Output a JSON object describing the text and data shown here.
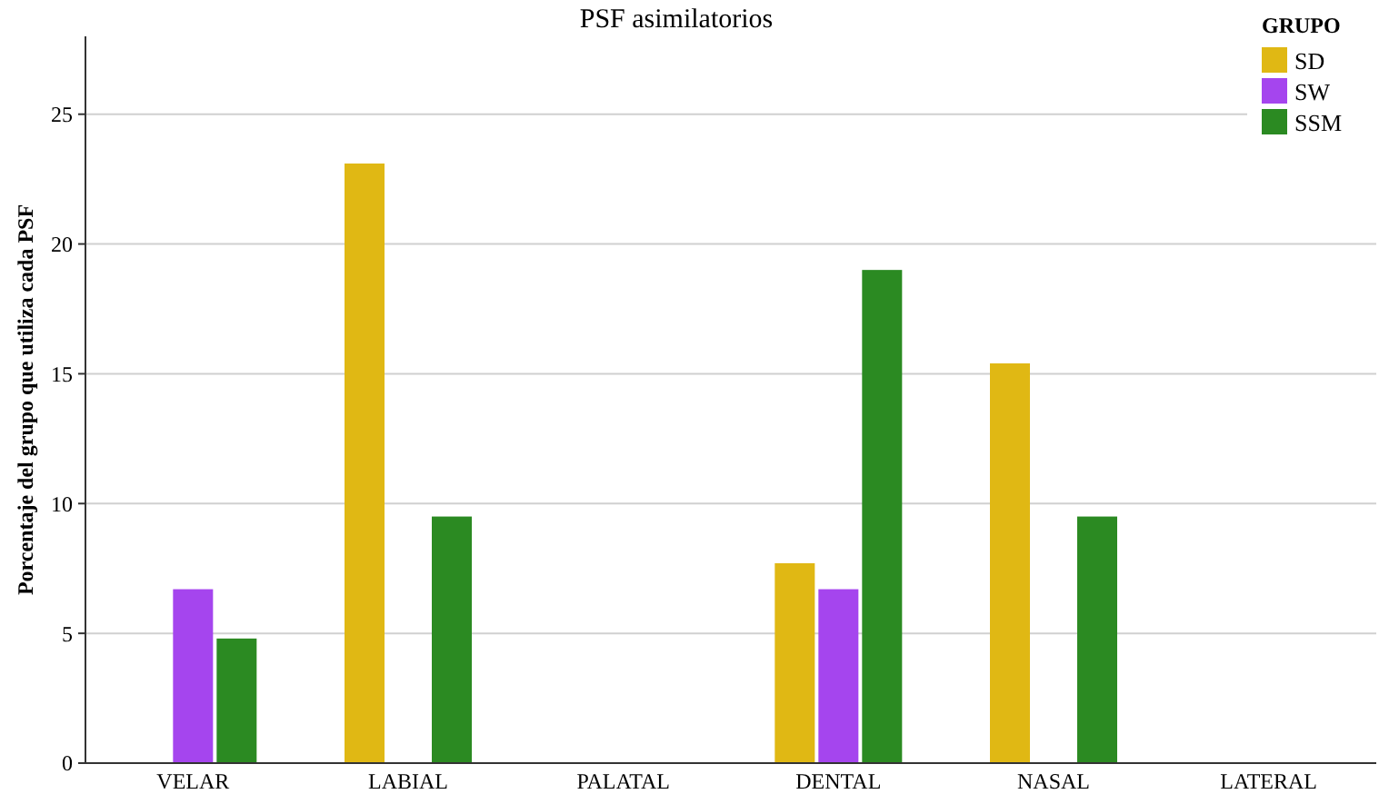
{
  "chart_data": {
    "type": "bar",
    "title": "PSF asimilatorios",
    "ylabel": "Porcentaje del grupo que utiliza cada PSF",
    "legend_title": "GRUPO",
    "categories": [
      "VELAR",
      "LABIAL",
      "PALATAL",
      "DENTAL",
      "NASAL",
      "LATERAL"
    ],
    "series": [
      {
        "name": "SD",
        "color": "#e0b814",
        "values": [
          0,
          23.1,
          0,
          7.7,
          15.4,
          0
        ]
      },
      {
        "name": "SW",
        "color": "#a545ee",
        "values": [
          6.7,
          0,
          0,
          6.7,
          0,
          0
        ]
      },
      {
        "name": "SSM",
        "color": "#2b8a22",
        "values": [
          4.8,
          9.5,
          0,
          19.0,
          9.5,
          0
        ]
      }
    ],
    "ylim": [
      0,
      28
    ],
    "yticks": [
      0,
      5,
      10,
      15,
      20,
      25
    ],
    "grid": "y",
    "legend": "top right"
  }
}
